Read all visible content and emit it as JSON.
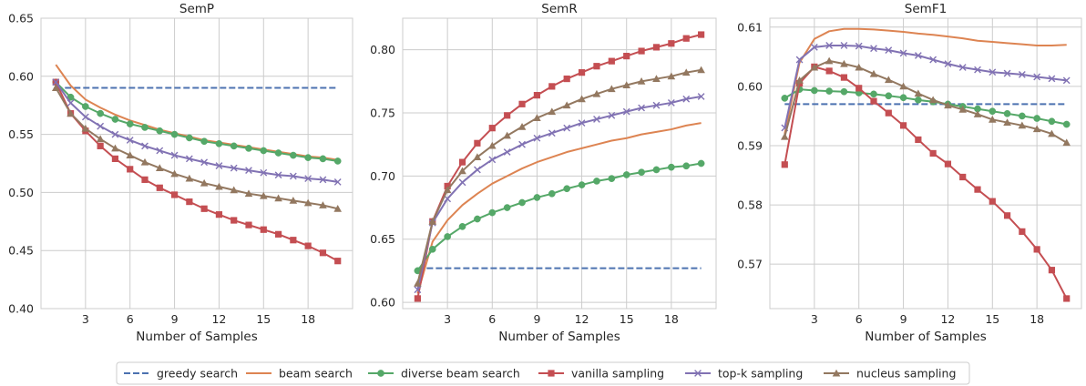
{
  "legend": {
    "placement": "bottom-center",
    "items": [
      {
        "label": "greedy search",
        "color": "#4c72b0",
        "style": "dashed",
        "marker": "none"
      },
      {
        "label": "beam search",
        "color": "#dd8452",
        "style": "solid",
        "marker": "none"
      },
      {
        "label": "diverse beam search",
        "color": "#55a868",
        "style": "solid",
        "marker": "circle"
      },
      {
        "label": "vanilla sampling",
        "color": "#c44e52",
        "style": "solid",
        "marker": "square"
      },
      {
        "label": "top-k sampling",
        "color": "#8172b3",
        "style": "solid",
        "marker": "x"
      },
      {
        "label": "nucleus sampling",
        "color": "#937860",
        "style": "solid",
        "marker": "triangle"
      }
    ]
  },
  "chart_data": [
    {
      "type": "line",
      "title": "SemP",
      "xlabel": "Number of Samples",
      "ylabel": "",
      "xlim": [
        0.0,
        21.0
      ],
      "ylim": [
        0.4,
        0.65
      ],
      "xticks": [
        3,
        6,
        9,
        12,
        15,
        18
      ],
      "yticks": [
        0.4,
        0.45,
        0.5,
        0.55,
        0.6,
        0.65
      ],
      "ytick_labels": [
        "0.40",
        "0.45",
        "0.50",
        "0.55",
        "0.60",
        "0.65"
      ],
      "grid": true,
      "x": [
        1,
        2,
        3,
        4,
        5,
        6,
        7,
        8,
        9,
        10,
        11,
        12,
        13,
        14,
        15,
        16,
        17,
        18,
        19,
        20
      ],
      "series": [
        {
          "name": "greedy search",
          "values": [
            0.59,
            0.59,
            0.59,
            0.59,
            0.59,
            0.59,
            0.59,
            0.59,
            0.59,
            0.59,
            0.59,
            0.59,
            0.59,
            0.59,
            0.59,
            0.59,
            0.59,
            0.59,
            0.59,
            0.59
          ]
        },
        {
          "name": "beam search",
          "values": [
            0.61,
            0.592,
            0.58,
            0.573,
            0.567,
            0.562,
            0.558,
            0.554,
            0.551,
            0.548,
            0.545,
            0.543,
            0.541,
            0.539,
            0.537,
            0.535,
            0.533,
            0.531,
            0.53,
            0.528
          ]
        },
        {
          "name": "diverse beam search",
          "values": [
            0.595,
            0.582,
            0.574,
            0.568,
            0.563,
            0.559,
            0.556,
            0.553,
            0.55,
            0.547,
            0.544,
            0.542,
            0.54,
            0.538,
            0.536,
            0.534,
            0.532,
            0.53,
            0.529,
            0.527
          ]
        },
        {
          "name": "vanilla sampling",
          "values": [
            0.595,
            0.568,
            0.553,
            0.54,
            0.529,
            0.52,
            0.511,
            0.504,
            0.498,
            0.492,
            0.486,
            0.481,
            0.476,
            0.472,
            0.468,
            0.464,
            0.459,
            0.454,
            0.448,
            0.441
          ]
        },
        {
          "name": "top-k sampling",
          "values": [
            0.595,
            0.577,
            0.565,
            0.557,
            0.55,
            0.545,
            0.54,
            0.536,
            0.532,
            0.529,
            0.526,
            0.523,
            0.521,
            0.519,
            0.517,
            0.515,
            0.514,
            0.512,
            0.511,
            0.509
          ]
        },
        {
          "name": "nucleus sampling",
          "values": [
            0.59,
            0.568,
            0.555,
            0.546,
            0.538,
            0.532,
            0.526,
            0.521,
            0.516,
            0.512,
            0.508,
            0.505,
            0.502,
            0.499,
            0.497,
            0.495,
            0.493,
            0.491,
            0.489,
            0.486
          ]
        }
      ]
    },
    {
      "type": "line",
      "title": "SemR",
      "xlabel": "Number of Samples",
      "ylabel": "",
      "xlim": [
        0.0,
        21.0
      ],
      "ylim": [
        0.595,
        0.825
      ],
      "xticks": [
        3,
        6,
        9,
        12,
        15,
        18
      ],
      "yticks": [
        0.6,
        0.65,
        0.7,
        0.75,
        0.8
      ],
      "ytick_labels": [
        "0.60",
        "0.65",
        "0.70",
        "0.75",
        "0.80"
      ],
      "grid": true,
      "x": [
        1,
        2,
        3,
        4,
        5,
        6,
        7,
        8,
        9,
        10,
        11,
        12,
        13,
        14,
        15,
        16,
        17,
        18,
        19,
        20
      ],
      "series": [
        {
          "name": "greedy search",
          "values": [
            0.627,
            0.627,
            0.627,
            0.627,
            0.627,
            0.627,
            0.627,
            0.627,
            0.627,
            0.627,
            0.627,
            0.627,
            0.627,
            0.627,
            0.627,
            0.627,
            0.627,
            0.627,
            0.627,
            0.627
          ]
        },
        {
          "name": "beam search",
          "values": [
            0.607,
            0.648,
            0.665,
            0.677,
            0.686,
            0.694,
            0.7,
            0.706,
            0.711,
            0.715,
            0.719,
            0.722,
            0.725,
            0.728,
            0.73,
            0.733,
            0.735,
            0.737,
            0.74,
            0.742
          ]
        },
        {
          "name": "diverse beam search",
          "values": [
            0.625,
            0.642,
            0.652,
            0.66,
            0.666,
            0.671,
            0.675,
            0.679,
            0.683,
            0.686,
            0.69,
            0.693,
            0.696,
            0.698,
            0.701,
            0.703,
            0.705,
            0.707,
            0.708,
            0.71
          ]
        },
        {
          "name": "vanilla sampling",
          "values": [
            0.603,
            0.664,
            0.692,
            0.711,
            0.726,
            0.738,
            0.748,
            0.757,
            0.764,
            0.771,
            0.777,
            0.782,
            0.787,
            0.791,
            0.795,
            0.799,
            0.802,
            0.805,
            0.809,
            0.812
          ]
        },
        {
          "name": "top-k sampling",
          "values": [
            0.61,
            0.663,
            0.682,
            0.695,
            0.705,
            0.713,
            0.719,
            0.725,
            0.73,
            0.734,
            0.738,
            0.742,
            0.745,
            0.748,
            0.751,
            0.754,
            0.756,
            0.758,
            0.761,
            0.763
          ]
        },
        {
          "name": "nucleus sampling",
          "values": [
            0.615,
            0.664,
            0.689,
            0.704,
            0.715,
            0.724,
            0.732,
            0.739,
            0.746,
            0.751,
            0.756,
            0.761,
            0.765,
            0.769,
            0.772,
            0.775,
            0.777,
            0.779,
            0.782,
            0.784
          ]
        }
      ]
    },
    {
      "type": "line",
      "title": "SemF1",
      "xlabel": "Number of Samples",
      "ylabel": "",
      "xlim": [
        0.0,
        21.0
      ],
      "ylim": [
        0.5625,
        0.6115
      ],
      "xticks": [
        3,
        6,
        9,
        12,
        15,
        18
      ],
      "yticks": [
        0.57,
        0.58,
        0.59,
        0.6,
        0.61
      ],
      "ytick_labels": [
        "0.57",
        "0.58",
        "0.59",
        "0.60",
        "0.61"
      ],
      "grid": true,
      "x": [
        1,
        2,
        3,
        4,
        5,
        6,
        7,
        8,
        9,
        10,
        11,
        12,
        13,
        14,
        15,
        16,
        17,
        18,
        19,
        20
      ],
      "series": [
        {
          "name": "greedy search",
          "values": [
            0.597,
            0.597,
            0.597,
            0.597,
            0.597,
            0.597,
            0.597,
            0.597,
            0.597,
            0.597,
            0.597,
            0.597,
            0.597,
            0.597,
            0.597,
            0.597,
            0.597,
            0.597,
            0.597,
            0.597
          ]
        },
        {
          "name": "beam search",
          "values": [
            0.592,
            0.604,
            0.608,
            0.6093,
            0.6097,
            0.6097,
            0.6096,
            0.6094,
            0.6092,
            0.6089,
            0.6087,
            0.6084,
            0.6081,
            0.6077,
            0.6075,
            0.6073,
            0.6071,
            0.6069,
            0.6069,
            0.607
          ]
        },
        {
          "name": "diverse beam search",
          "values": [
            0.598,
            0.5995,
            0.5993,
            0.5992,
            0.5991,
            0.5989,
            0.5987,
            0.5984,
            0.5981,
            0.5977,
            0.5974,
            0.597,
            0.5966,
            0.5962,
            0.5958,
            0.5954,
            0.595,
            0.5946,
            0.5941,
            0.5936
          ]
        },
        {
          "name": "vanilla sampling",
          "values": [
            0.5868,
            0.6005,
            0.6033,
            0.6026,
            0.6015,
            0.5997,
            0.5975,
            0.5955,
            0.5934,
            0.591,
            0.5887,
            0.5869,
            0.5847,
            0.5826,
            0.5806,
            0.5782,
            0.5755,
            0.5725,
            0.569,
            0.5642
          ]
        },
        {
          "name": "top-k sampling",
          "values": [
            0.593,
            0.6045,
            0.6066,
            0.6069,
            0.6069,
            0.6068,
            0.6064,
            0.6061,
            0.6056,
            0.6052,
            0.6045,
            0.6038,
            0.6032,
            0.6028,
            0.6024,
            0.6022,
            0.602,
            0.6016,
            0.6013,
            0.601
          ]
        },
        {
          "name": "nucleus sampling",
          "values": [
            0.5915,
            0.601,
            0.6032,
            0.6043,
            0.6038,
            0.6032,
            0.6021,
            0.6011,
            0.6,
            0.5988,
            0.5977,
            0.5968,
            0.5961,
            0.5953,
            0.5944,
            0.5939,
            0.5934,
            0.5928,
            0.592,
            0.5905
          ]
        }
      ]
    }
  ]
}
